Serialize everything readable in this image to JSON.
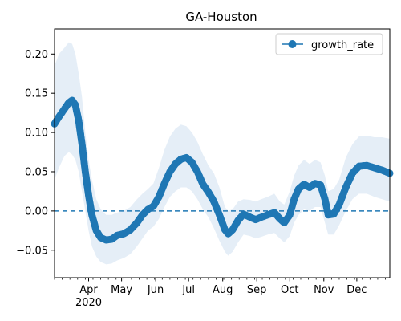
{
  "chart_data": {
    "type": "line",
    "title": "GA-Houston",
    "xlabel": "",
    "ylabel": "",
    "x_range": [
      "2020-03-01",
      "2020-12-31"
    ],
    "ylim": [
      -0.085,
      0.232
    ],
    "y_ticks": [
      -0.05,
      0.0,
      0.05,
      0.1,
      0.15,
      0.2
    ],
    "y_tick_labels": [
      "−0.05",
      "0.00",
      "0.05",
      "0.10",
      "0.15",
      "0.20"
    ],
    "x_ticks": [
      {
        "date": "2020-04-01",
        "label": "Apr",
        "year_label": "2020"
      },
      {
        "date": "2020-05-01",
        "label": "May"
      },
      {
        "date": "2020-06-01",
        "label": "Jun"
      },
      {
        "date": "2020-07-01",
        "label": "Jul"
      },
      {
        "date": "2020-08-01",
        "label": "Aug"
      },
      {
        "date": "2020-09-01",
        "label": "Sep"
      },
      {
        "date": "2020-10-01",
        "label": "Oct"
      },
      {
        "date": "2020-11-01",
        "label": "Nov"
      },
      {
        "date": "2020-12-01",
        "label": "Dec"
      }
    ],
    "grid": false,
    "legend_position": "top-right",
    "reference_line": {
      "y": 0.0,
      "style": "dashed",
      "color": "#1f77b4"
    },
    "colors": {
      "line": "#1f77b4",
      "band": "#cfe0f1"
    },
    "series": [
      {
        "name": "growth_rate",
        "marker": "circle",
        "points": [
          {
            "x": "2020-03-01",
            "y": 0.111,
            "lo": 0.04,
            "hi": 0.185
          },
          {
            "x": "2020-03-05",
            "y": 0.12,
            "lo": 0.055,
            "hi": 0.2
          },
          {
            "x": "2020-03-10",
            "y": 0.13,
            "lo": 0.07,
            "hi": 0.208
          },
          {
            "x": "2020-03-14",
            "y": 0.138,
            "lo": 0.075,
            "hi": 0.215
          },
          {
            "x": "2020-03-17",
            "y": 0.141,
            "lo": 0.072,
            "hi": 0.213
          },
          {
            "x": "2020-03-20",
            "y": 0.135,
            "lo": 0.065,
            "hi": 0.2
          },
          {
            "x": "2020-03-23",
            "y": 0.115,
            "lo": 0.05,
            "hi": 0.175
          },
          {
            "x": "2020-03-26",
            "y": 0.085,
            "lo": 0.025,
            "hi": 0.145
          },
          {
            "x": "2020-03-29",
            "y": 0.05,
            "lo": 0.0,
            "hi": 0.1
          },
          {
            "x": "2020-04-01",
            "y": 0.02,
            "lo": -0.025,
            "hi": 0.065
          },
          {
            "x": "2020-04-04",
            "y": -0.005,
            "lo": -0.045,
            "hi": 0.04
          },
          {
            "x": "2020-04-08",
            "y": -0.025,
            "lo": -0.058,
            "hi": 0.015
          },
          {
            "x": "2020-04-12",
            "y": -0.034,
            "lo": -0.065,
            "hi": 0.002
          },
          {
            "x": "2020-04-17",
            "y": -0.037,
            "lo": -0.068,
            "hi": -0.005
          },
          {
            "x": "2020-04-22",
            "y": -0.036,
            "lo": -0.067,
            "hi": -0.005
          },
          {
            "x": "2020-04-27",
            "y": -0.031,
            "lo": -0.063,
            "hi": -0.002
          },
          {
            "x": "2020-05-03",
            "y": -0.029,
            "lo": -0.06,
            "hi": 0.0
          },
          {
            "x": "2020-05-09",
            "y": -0.024,
            "lo": -0.055,
            "hi": 0.005
          },
          {
            "x": "2020-05-15",
            "y": -0.015,
            "lo": -0.045,
            "hi": 0.015
          },
          {
            "x": "2020-05-20",
            "y": -0.005,
            "lo": -0.035,
            "hi": 0.022
          },
          {
            "x": "2020-05-25",
            "y": 0.002,
            "lo": -0.025,
            "hi": 0.028
          },
          {
            "x": "2020-05-30",
            "y": 0.006,
            "lo": -0.02,
            "hi": 0.035
          },
          {
            "x": "2020-06-04",
            "y": 0.018,
            "lo": -0.01,
            "hi": 0.055
          },
          {
            "x": "2020-06-09",
            "y": 0.035,
            "lo": 0.005,
            "hi": 0.078
          },
          {
            "x": "2020-06-14",
            "y": 0.05,
            "lo": 0.018,
            "hi": 0.095
          },
          {
            "x": "2020-06-19",
            "y": 0.06,
            "lo": 0.025,
            "hi": 0.105
          },
          {
            "x": "2020-06-24",
            "y": 0.066,
            "lo": 0.03,
            "hi": 0.11
          },
          {
            "x": "2020-06-29",
            "y": 0.068,
            "lo": 0.03,
            "hi": 0.108
          },
          {
            "x": "2020-07-04",
            "y": 0.062,
            "lo": 0.025,
            "hi": 0.1
          },
          {
            "x": "2020-07-09",
            "y": 0.05,
            "lo": 0.015,
            "hi": 0.088
          },
          {
            "x": "2020-07-14",
            "y": 0.034,
            "lo": 0.002,
            "hi": 0.072
          },
          {
            "x": "2020-07-19",
            "y": 0.024,
            "lo": -0.008,
            "hi": 0.058
          },
          {
            "x": "2020-07-24",
            "y": 0.012,
            "lo": -0.022,
            "hi": 0.048
          },
          {
            "x": "2020-07-29",
            "y": -0.005,
            "lo": -0.038,
            "hi": 0.03
          },
          {
            "x": "2020-08-03",
            "y": -0.024,
            "lo": -0.052,
            "hi": 0.005
          },
          {
            "x": "2020-08-06",
            "y": -0.029,
            "lo": -0.057,
            "hi": 0.0
          },
          {
            "x": "2020-08-10",
            "y": -0.024,
            "lo": -0.052,
            "hi": 0.002
          },
          {
            "x": "2020-08-15",
            "y": -0.012,
            "lo": -0.04,
            "hi": 0.012
          },
          {
            "x": "2020-08-20",
            "y": -0.004,
            "lo": -0.03,
            "hi": 0.015
          },
          {
            "x": "2020-08-26",
            "y": -0.008,
            "lo": -0.032,
            "hi": 0.014
          },
          {
            "x": "2020-08-31",
            "y": -0.011,
            "lo": -0.035,
            "hi": 0.012
          },
          {
            "x": "2020-09-05",
            "y": -0.008,
            "lo": -0.033,
            "hi": 0.015
          },
          {
            "x": "2020-09-11",
            "y": -0.005,
            "lo": -0.03,
            "hi": 0.018
          },
          {
            "x": "2020-09-17",
            "y": -0.002,
            "lo": -0.028,
            "hi": 0.022
          },
          {
            "x": "2020-09-22",
            "y": -0.01,
            "lo": -0.035,
            "hi": 0.012
          },
          {
            "x": "2020-09-26",
            "y": -0.015,
            "lo": -0.04,
            "hi": 0.008
          },
          {
            "x": "2020-10-01",
            "y": -0.005,
            "lo": -0.032,
            "hi": 0.025
          },
          {
            "x": "2020-10-05",
            "y": 0.015,
            "lo": -0.015,
            "hi": 0.045
          },
          {
            "x": "2020-10-09",
            "y": 0.028,
            "lo": -0.005,
            "hi": 0.058
          },
          {
            "x": "2020-10-14",
            "y": 0.034,
            "lo": 0.002,
            "hi": 0.065
          },
          {
            "x": "2020-10-19",
            "y": 0.03,
            "lo": 0.0,
            "hi": 0.06
          },
          {
            "x": "2020-10-24",
            "y": 0.035,
            "lo": 0.005,
            "hi": 0.065
          },
          {
            "x": "2020-10-29",
            "y": 0.033,
            "lo": 0.005,
            "hi": 0.062
          },
          {
            "x": "2020-11-02",
            "y": 0.015,
            "lo": -0.015,
            "hi": 0.045
          },
          {
            "x": "2020-11-05",
            "y": -0.005,
            "lo": -0.03,
            "hi": 0.025
          },
          {
            "x": "2020-11-10",
            "y": -0.004,
            "lo": -0.03,
            "hi": 0.028
          },
          {
            "x": "2020-11-15",
            "y": 0.008,
            "lo": -0.018,
            "hi": 0.04
          },
          {
            "x": "2020-11-21",
            "y": 0.03,
            "lo": 0.0,
            "hi": 0.068
          },
          {
            "x": "2020-11-27",
            "y": 0.048,
            "lo": 0.015,
            "hi": 0.085
          },
          {
            "x": "2020-12-03",
            "y": 0.057,
            "lo": 0.022,
            "hi": 0.095
          },
          {
            "x": "2020-12-10",
            "y": 0.058,
            "lo": 0.022,
            "hi": 0.096
          },
          {
            "x": "2020-12-17",
            "y": 0.055,
            "lo": 0.018,
            "hi": 0.094
          },
          {
            "x": "2020-12-24",
            "y": 0.052,
            "lo": 0.015,
            "hi": 0.094
          },
          {
            "x": "2020-12-31",
            "y": 0.048,
            "lo": 0.012,
            "hi": 0.092
          }
        ]
      }
    ]
  }
}
